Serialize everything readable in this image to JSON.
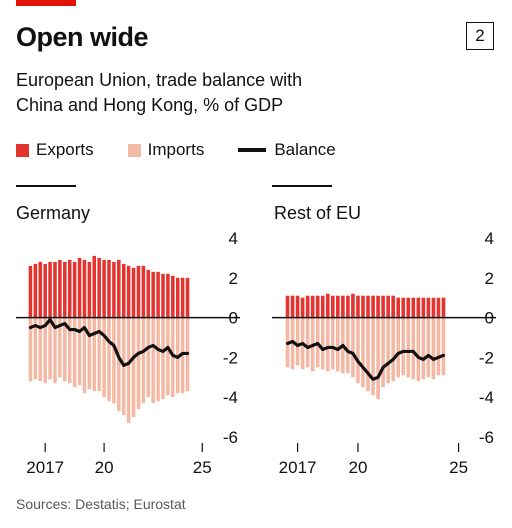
{
  "header": {
    "title": "Open wide",
    "badge": "2",
    "subtitle_line1": "European Union, trade balance with",
    "subtitle_line2": "China and Hong Kong, % of GDP"
  },
  "colors": {
    "accent": "#e3120b",
    "exports": "#e3342f",
    "imports": "#f4b9a4",
    "balance": "#111111",
    "zero_line": "#111111",
    "tick_text": "#111111"
  },
  "legend": {
    "exports": "Exports",
    "imports": "Imports",
    "balance": "Balance"
  },
  "source": "Sources: Destatis; Eurostat",
  "chart_data": [
    {
      "type": "bar",
      "title": "Germany",
      "ylim": [
        -6,
        4
      ],
      "yticks": [
        "4",
        "2",
        "0",
        "-2",
        "-4",
        "-6"
      ],
      "ytick_values": [
        4,
        2,
        0,
        -2,
        -4,
        -6
      ],
      "xtick_labels": [
        "2017",
        "20",
        "25"
      ],
      "xtick_positions": [
        2017,
        2020,
        2025
      ],
      "x_start": 2016.25,
      "x_step": 0.25,
      "series": [
        {
          "name": "Exports",
          "values": [
            2.6,
            2.7,
            2.8,
            2.7,
            2.8,
            2.8,
            2.9,
            2.8,
            2.9,
            2.8,
            3.0,
            2.9,
            2.8,
            3.1,
            3.0,
            2.9,
            2.9,
            2.8,
            2.9,
            2.7,
            2.6,
            2.5,
            2.6,
            2.6,
            2.4,
            2.3,
            2.3,
            2.2,
            2.2,
            2.1,
            2.0,
            2.0,
            2.0
          ]
        },
        {
          "name": "Imports",
          "values": [
            -3.2,
            -3.1,
            -3.2,
            -3.3,
            -3.1,
            -3.3,
            -3.0,
            -3.2,
            -3.3,
            -3.5,
            -3.4,
            -3.8,
            -3.6,
            -3.7,
            -3.7,
            -4.0,
            -4.2,
            -4.3,
            -4.7,
            -4.9,
            -5.3,
            -5.0,
            -4.6,
            -4.3,
            -4.0,
            -4.3,
            -4.2,
            -4.1,
            -3.9,
            -4.0,
            -3.8,
            -3.8,
            -3.7
          ]
        },
        {
          "name": "Balance",
          "values": [
            -0.5,
            -0.4,
            -0.5,
            -0.4,
            -0.1,
            -0.5,
            -0.4,
            -0.3,
            -0.6,
            -0.6,
            -0.7,
            -0.5,
            -0.9,
            -0.8,
            -0.7,
            -0.9,
            -1.2,
            -1.4,
            -2.0,
            -2.4,
            -2.3,
            -2.0,
            -1.8,
            -1.7,
            -1.5,
            -1.4,
            -1.6,
            -1.7,
            -1.5,
            -1.9,
            -2.0,
            -1.8,
            -1.8
          ]
        }
      ]
    },
    {
      "type": "bar",
      "title": "Rest of EU",
      "ylim": [
        -6,
        4
      ],
      "yticks": [
        "4",
        "2",
        "0",
        "-2",
        "-4",
        "-6"
      ],
      "ytick_values": [
        4,
        2,
        0,
        -2,
        -4,
        -6
      ],
      "xtick_labels": [
        "2017",
        "20",
        "25"
      ],
      "xtick_positions": [
        2017,
        2020,
        2025
      ],
      "x_start": 2016.5,
      "x_step": 0.25,
      "series": [
        {
          "name": "Exports",
          "values": [
            1.1,
            1.1,
            1.1,
            1.0,
            1.1,
            1.1,
            1.1,
            1.1,
            1.2,
            1.1,
            1.1,
            1.1,
            1.1,
            1.2,
            1.1,
            1.1,
            1.1,
            1.1,
            1.1,
            1.1,
            1.1,
            1.1,
            1.0,
            1.0,
            1.0,
            1.0,
            1.0,
            1.0,
            1.0,
            1.0,
            1.0,
            1.0
          ]
        },
        {
          "name": "Imports",
          "values": [
            -2.5,
            -2.6,
            -2.4,
            -2.6,
            -2.5,
            -2.7,
            -2.5,
            -2.6,
            -2.7,
            -2.6,
            -2.7,
            -2.8,
            -2.8,
            -3.0,
            -3.3,
            -3.5,
            -3.7,
            -3.9,
            -4.1,
            -3.5,
            -3.3,
            -3.2,
            -3.0,
            -2.9,
            -3.0,
            -3.1,
            -3.2,
            -3.1,
            -3.0,
            -3.1,
            -2.9,
            -2.9
          ]
        },
        {
          "name": "Balance",
          "values": [
            -1.3,
            -1.2,
            -1.4,
            -1.3,
            -1.5,
            -1.4,
            -1.3,
            -1.6,
            -1.5,
            -1.5,
            -1.6,
            -1.4,
            -1.7,
            -1.8,
            -2.2,
            -2.5,
            -2.8,
            -3.1,
            -3.0,
            -2.5,
            -2.3,
            -2.1,
            -1.8,
            -1.7,
            -1.7,
            -1.7,
            -2.0,
            -2.1,
            -1.9,
            -2.1,
            -2.0,
            -1.9
          ]
        }
      ]
    }
  ]
}
